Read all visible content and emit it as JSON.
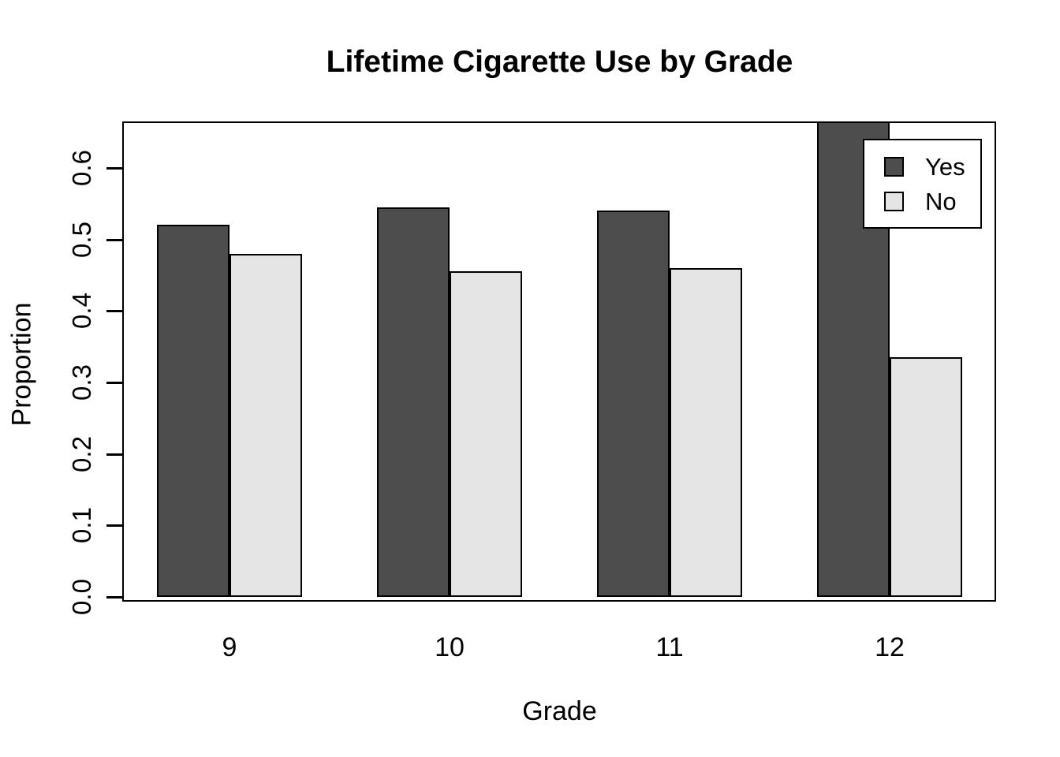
{
  "chart_data": {
    "type": "bar",
    "title": "Lifetime Cigarette Use by Grade",
    "xlabel": "Grade",
    "ylabel": "Proportion",
    "categories": [
      "9",
      "10",
      "11",
      "12"
    ],
    "series": [
      {
        "name": "Yes",
        "color": "#4D4D4D",
        "values": [
          0.52,
          0.545,
          0.54,
          0.665
        ]
      },
      {
        "name": "No",
        "color": "#E5E5E5",
        "values": [
          0.48,
          0.455,
          0.46,
          0.335
        ]
      }
    ],
    "y_tick_labels": [
      "0.0",
      "0.1",
      "0.2",
      "0.3",
      "0.4",
      "0.5",
      "0.6"
    ],
    "ylim": [
      0,
      0.665
    ],
    "grid": false,
    "legend_position": "top-right",
    "bar_border_color": "#000000",
    "axis_color": "#000000",
    "background_color": "#FFFFFF"
  }
}
